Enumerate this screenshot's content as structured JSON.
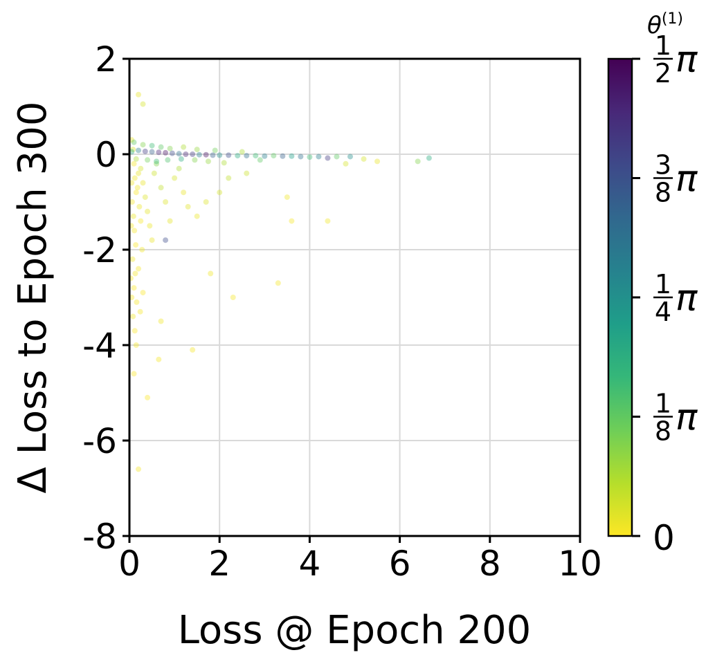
{
  "chart_data": {
    "type": "scatter",
    "title": "",
    "xlabel": "Loss @ Epoch 200",
    "ylabel": "Δ Loss to Epoch 300",
    "xlim": [
      0,
      10
    ],
    "ylim": [
      -8,
      2
    ],
    "x_ticks": [
      0,
      2,
      4,
      6,
      8,
      10
    ],
    "y_ticks": [
      2,
      0,
      -2,
      -4,
      -6,
      -8
    ],
    "x_tick_labels": [
      "0",
      "2",
      "4",
      "6",
      "8",
      "10"
    ],
    "y_tick_labels": [
      "2",
      "0",
      "-2",
      "-4",
      "-6",
      "-8"
    ],
    "grid": true,
    "point_alpha": 0.18,
    "colorbar": {
      "title": "θ",
      "title_superscript": "(1)",
      "cmap": "viridis",
      "range": [
        0,
        1.5708
      ],
      "ticks": [
        {
          "value": 0,
          "label": "0"
        },
        {
          "value": 0.3927,
          "num": "1",
          "den": "8",
          "symbol": "π"
        },
        {
          "value": 0.7854,
          "num": "1",
          "den": "4",
          "symbol": "π"
        },
        {
          "value": 1.1781,
          "num": "3",
          "den": "8",
          "symbol": "π"
        },
        {
          "value": 1.5708,
          "num": "1",
          "den": "2",
          "symbol": "π"
        }
      ],
      "stops": [
        "#fde725",
        "#b5de2b",
        "#6ece58",
        "#35b779",
        "#1f9e89",
        "#26828e",
        "#31688e",
        "#3e4989",
        "#482878",
        "#440154"
      ]
    },
    "points": [
      {
        "x": 0.05,
        "y": 0.3,
        "c": 0.05
      },
      {
        "x": 0.08,
        "y": 0.1,
        "c": 0.1
      },
      {
        "x": 0.1,
        "y": -0.2,
        "c": 0.02
      },
      {
        "x": 0.12,
        "y": -0.5,
        "c": 0.03
      },
      {
        "x": 0.15,
        "y": -0.8,
        "c": 0.01
      },
      {
        "x": 0.06,
        "y": -1.0,
        "c": 0.02
      },
      {
        "x": 0.09,
        "y": -1.3,
        "c": 0.04
      },
      {
        "x": 0.11,
        "y": -1.6,
        "c": 0.02
      },
      {
        "x": 0.14,
        "y": -1.9,
        "c": 0.01
      },
      {
        "x": 0.07,
        "y": -2.2,
        "c": 0.03
      },
      {
        "x": 0.13,
        "y": -2.5,
        "c": 0.02
      },
      {
        "x": 0.1,
        "y": -2.8,
        "c": 0.01
      },
      {
        "x": 0.16,
        "y": -3.1,
        "c": 0.02
      },
      {
        "x": 0.08,
        "y": -3.4,
        "c": 0.03
      },
      {
        "x": 0.12,
        "y": -3.7,
        "c": 0.01
      },
      {
        "x": 0.15,
        "y": -4.0,
        "c": 0.02
      },
      {
        "x": 0.1,
        "y": -4.6,
        "c": 0.01
      },
      {
        "x": 0.2,
        "y": -6.6,
        "c": 0.02
      },
      {
        "x": 0.4,
        "y": -5.1,
        "c": 0.01
      },
      {
        "x": 0.65,
        "y": -4.3,
        "c": 0.02
      },
      {
        "x": 0.7,
        "y": -3.5,
        "c": 0.03
      },
      {
        "x": 0.2,
        "y": 1.25,
        "c": 0.05
      },
      {
        "x": 0.3,
        "y": 1.05,
        "c": 0.1
      },
      {
        "x": 0.25,
        "y": -0.3,
        "c": 0.1
      },
      {
        "x": 0.3,
        "y": -0.6,
        "c": 0.05
      },
      {
        "x": 0.35,
        "y": -0.9,
        "c": 0.08
      },
      {
        "x": 0.4,
        "y": -1.2,
        "c": 0.06
      },
      {
        "x": 0.45,
        "y": -1.5,
        "c": 0.04
      },
      {
        "x": 0.5,
        "y": -1.8,
        "c": 0.05
      },
      {
        "x": 0.55,
        "y": -0.4,
        "c": 0.12
      },
      {
        "x": 0.6,
        "y": -0.2,
        "c": 0.3
      },
      {
        "x": 0.7,
        "y": -0.7,
        "c": 0.15
      },
      {
        "x": 0.8,
        "y": -1.0,
        "c": 0.08
      },
      {
        "x": 0.9,
        "y": -1.4,
        "c": 0.06
      },
      {
        "x": 0.8,
        "y": -1.8,
        "c": 1.2
      },
      {
        "x": 1.0,
        "y": -0.5,
        "c": 0.1
      },
      {
        "x": 1.1,
        "y": -0.3,
        "c": 0.2
      },
      {
        "x": 1.2,
        "y": -0.8,
        "c": 0.05
      },
      {
        "x": 1.3,
        "y": -1.1,
        "c": 0.07
      },
      {
        "x": 1.5,
        "y": -1.3,
        "c": 0.04
      },
      {
        "x": 1.4,
        "y": -4.1,
        "c": 0.02
      },
      {
        "x": 1.8,
        "y": -2.5,
        "c": 0.03
      },
      {
        "x": 2.3,
        "y": -3.0,
        "c": 0.02
      },
      {
        "x": 3.3,
        "y": -2.7,
        "c": 0.02
      },
      {
        "x": 1.7,
        "y": -1.0,
        "c": 0.08
      },
      {
        "x": 2.0,
        "y": -0.8,
        "c": 0.1
      },
      {
        "x": 2.2,
        "y": -0.5,
        "c": 0.15
      },
      {
        "x": 2.6,
        "y": -0.4,
        "c": 0.12
      },
      {
        "x": 3.5,
        "y": -0.9,
        "c": 0.03
      },
      {
        "x": 3.6,
        "y": -1.4,
        "c": 0.02
      },
      {
        "x": 4.4,
        "y": -1.4,
        "c": 0.03
      },
      {
        "x": 0.05,
        "y": 0.05,
        "c": 0.6
      },
      {
        "x": 0.2,
        "y": 0.08,
        "c": 0.9
      },
      {
        "x": 0.35,
        "y": 0.06,
        "c": 1.3
      },
      {
        "x": 0.5,
        "y": 0.05,
        "c": 1.1
      },
      {
        "x": 0.65,
        "y": 0.04,
        "c": 1.4
      },
      {
        "x": 0.8,
        "y": 0.03,
        "c": 1.5
      },
      {
        "x": 0.95,
        "y": 0.02,
        "c": 1.2
      },
      {
        "x": 1.1,
        "y": 0.01,
        "c": 1.0
      },
      {
        "x": 1.25,
        "y": 0.0,
        "c": 1.4
      },
      {
        "x": 1.4,
        "y": 0.0,
        "c": 1.3
      },
      {
        "x": 1.55,
        "y": -0.01,
        "c": 0.9
      },
      {
        "x": 1.7,
        "y": -0.01,
        "c": 1.5
      },
      {
        "x": 1.85,
        "y": -0.02,
        "c": 1.1
      },
      {
        "x": 2.0,
        "y": -0.02,
        "c": 0.8
      },
      {
        "x": 2.2,
        "y": -0.02,
        "c": 1.2
      },
      {
        "x": 2.4,
        "y": -0.03,
        "c": 0.6
      },
      {
        "x": 2.6,
        "y": -0.03,
        "c": 1.0
      },
      {
        "x": 2.8,
        "y": -0.03,
        "c": 0.5
      },
      {
        "x": 3.0,
        "y": -0.04,
        "c": 0.9
      },
      {
        "x": 3.2,
        "y": -0.03,
        "c": 0.4
      },
      {
        "x": 3.4,
        "y": -0.04,
        "c": 1.1
      },
      {
        "x": 3.6,
        "y": -0.04,
        "c": 0.7
      },
      {
        "x": 3.8,
        "y": -0.05,
        "c": 1.0
      },
      {
        "x": 4.0,
        "y": -0.06,
        "c": 0.5
      },
      {
        "x": 4.2,
        "y": -0.05,
        "c": 0.9
      },
      {
        "x": 4.4,
        "y": -0.08,
        "c": 1.3
      },
      {
        "x": 4.6,
        "y": -0.05,
        "c": 0.4
      },
      {
        "x": 4.9,
        "y": -0.05,
        "c": 0.8
      },
      {
        "x": 5.2,
        "y": -0.1,
        "c": 0.1
      },
      {
        "x": 5.5,
        "y": -0.15,
        "c": 0.05
      },
      {
        "x": 6.4,
        "y": -0.15,
        "c": 0.3
      },
      {
        "x": 6.65,
        "y": -0.08,
        "c": 0.6
      },
      {
        "x": 4.8,
        "y": -0.2,
        "c": 0.1
      },
      {
        "x": 0.1,
        "y": 0.25,
        "c": 0.4
      },
      {
        "x": 0.3,
        "y": 0.2,
        "c": 0.3
      },
      {
        "x": 0.5,
        "y": 0.18,
        "c": 0.5
      },
      {
        "x": 0.7,
        "y": 0.15,
        "c": 0.4
      },
      {
        "x": 0.9,
        "y": 0.12,
        "c": 0.3
      },
      {
        "x": 1.2,
        "y": 0.15,
        "c": 0.2
      },
      {
        "x": 1.5,
        "y": 0.1,
        "c": 0.25
      },
      {
        "x": 1.9,
        "y": 0.08,
        "c": 0.35
      },
      {
        "x": 2.5,
        "y": 0.05,
        "c": 0.2
      },
      {
        "x": 0.15,
        "y": -0.1,
        "c": 0.2
      },
      {
        "x": 0.4,
        "y": -0.12,
        "c": 0.35
      },
      {
        "x": 0.6,
        "y": -0.15,
        "c": 0.5
      },
      {
        "x": 0.85,
        "y": -0.12,
        "c": 0.45
      },
      {
        "x": 1.15,
        "y": -0.1,
        "c": 0.6
      },
      {
        "x": 1.45,
        "y": -0.12,
        "c": 0.3
      },
      {
        "x": 1.75,
        "y": -0.15,
        "c": 0.25
      },
      {
        "x": 2.1,
        "y": -0.18,
        "c": 0.2
      },
      {
        "x": 2.9,
        "y": -0.12,
        "c": 0.4
      },
      {
        "x": 0.2,
        "y": -0.4,
        "c": 0.05
      },
      {
        "x": 0.18,
        "y": -0.7,
        "c": 0.03
      },
      {
        "x": 0.22,
        "y": -1.1,
        "c": 0.04
      },
      {
        "x": 0.25,
        "y": -1.4,
        "c": 0.02
      },
      {
        "x": 0.28,
        "y": -2.0,
        "c": 0.03
      },
      {
        "x": 0.2,
        "y": -2.4,
        "c": 0.02
      },
      {
        "x": 0.3,
        "y": -2.9,
        "c": 0.01
      },
      {
        "x": 0.24,
        "y": -3.3,
        "c": 0.02
      },
      {
        "x": 0.05,
        "y": -0.6,
        "c": 0.03
      },
      {
        "x": 0.04,
        "y": -1.5,
        "c": 0.02
      },
      {
        "x": 0.03,
        "y": -2.6,
        "c": 0.01
      },
      {
        "x": 0.05,
        "y": -3.0,
        "c": 0.02
      }
    ]
  }
}
